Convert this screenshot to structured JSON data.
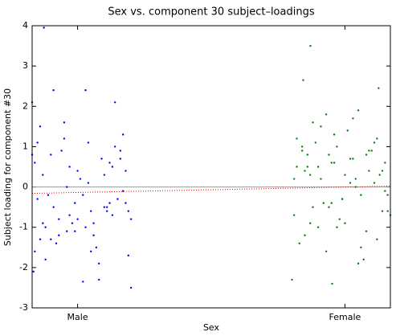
{
  "chart_data": {
    "type": "scatter",
    "title": "Sex vs. component 30 subject–loadings",
    "xlabel": "Sex",
    "ylabel": "Subject loading for component #30",
    "xlim": [
      0.83,
      2.17
    ],
    "xticks": [
      {
        "value": 1,
        "label": "Male"
      },
      {
        "value": 2,
        "label": "Female"
      }
    ],
    "ylim": [
      -3,
      4
    ],
    "yticks": [
      -3,
      -2,
      -1,
      0,
      1,
      2,
      3,
      4
    ],
    "hline": 0,
    "series": [
      {
        "color": "#0000ff",
        "x": [
          0.874,
          0.91,
          1.03,
          1.14,
          0.83,
          1.08,
          1.02,
          1.2,
          0.835,
          0.86,
          0.95,
          1.17,
          0.9,
          1.05,
          1.12,
          0.84,
          0.88,
          0.97,
          1.0,
          1.1,
          1.16,
          0.93,
          0.87,
          1.06,
          1.19,
          0.85,
          0.99,
          1.13,
          0.92,
          1.04,
          1.18,
          0.89,
          0.96,
          1.09,
          1.15,
          0.86,
          1.01,
          1.11,
          0.94,
          1.07,
          1.2,
          0.84,
          0.98,
          1.14,
          0.91,
          1.03,
          1.17,
          0.88,
          1.0,
          1.12,
          0.95,
          1.06,
          1.19,
          0.85,
          0.97,
          1.1,
          0.9,
          1.02,
          1.16,
          0.87,
          1.08,
          1.13,
          0.93,
          1.04,
          1.18,
          0.83,
          0.99,
          1.11,
          0.96,
          1.05
        ],
        "values": [
          3.95,
          2.4,
          2.4,
          2.1,
          2.1,
          -2.3,
          -2.35,
          -2.5,
          -2.1,
          1.5,
          1.2,
          1.3,
          0.8,
          -0.6,
          0.6,
          -1.6,
          -1.0,
          0.5,
          -0.8,
          -0.5,
          0.9,
          -1.2,
          0.3,
          -0.9,
          -1.7,
          1.1,
          -0.4,
          -0.7,
          -1.4,
          0.1,
          0.4,
          -0.2,
          -1.1,
          0.7,
          -0.3,
          -1.3,
          0.2,
          -0.6,
          0.9,
          -1.5,
          -0.8,
          0.6,
          -0.9,
          1.0,
          -0.5,
          -1.0,
          -0.1,
          -1.8,
          0.4,
          -0.4,
          1.6,
          -1.2,
          -0.6,
          -0.3,
          -0.7,
          0.3,
          -1.3,
          -0.2,
          0.7,
          -0.9,
          -1.9,
          0.5,
          -0.8,
          1.1,
          -0.4,
          0.8,
          -1.1,
          -0.5,
          0.0,
          -1.6
        ]
      },
      {
        "color": "#008000",
        "x": [
          1.871,
          1.844,
          2.126,
          1.802,
          1.952,
          1.82,
          1.85,
          1.88,
          1.91,
          1.94,
          1.97,
          2.0,
          2.03,
          2.06,
          2.09,
          2.12,
          2.15,
          2.17,
          1.81,
          1.84,
          1.87,
          1.9,
          1.93,
          1.96,
          1.99,
          2.02,
          2.05,
          2.08,
          2.11,
          2.14,
          2.16,
          1.83,
          1.86,
          1.89,
          1.92,
          1.95,
          1.98,
          2.01,
          2.04,
          2.07,
          2.1,
          2.13,
          2.16,
          1.82,
          1.85,
          1.88,
          1.91,
          1.94,
          1.97,
          2.0,
          2.03,
          2.06,
          2.09,
          2.12,
          2.15,
          1.81,
          1.84,
          1.87,
          1.9,
          1.93,
          1.96,
          1.99,
          2.02,
          2.05,
          2.08,
          2.11,
          2.14,
          1.86,
          1.95,
          2.04
        ],
        "values": [
          3.5,
          2.65,
          2.45,
          -2.3,
          -2.4,
          1.2,
          0.4,
          -0.5,
          1.5,
          0.8,
          -1.0,
          0.3,
          1.7,
          -0.2,
          0.9,
          -1.3,
          0.6,
          -0.7,
          0.2,
          1.0,
          -0.9,
          0.5,
          -1.6,
          1.3,
          -0.3,
          0.7,
          1.9,
          -1.1,
          0.1,
          0.4,
          -0.6,
          -1.4,
          0.8,
          1.1,
          -0.4,
          0.6,
          -0.8,
          1.4,
          0.0,
          -1.8,
          0.9,
          0.3,
          -0.2,
          0.5,
          -1.2,
          1.6,
          0.2,
          -0.5,
          1.0,
          -0.9,
          0.7,
          -1.5,
          0.4,
          1.2,
          -0.1,
          -0.7,
          0.9,
          0.3,
          -1.0,
          1.8,
          0.6,
          -0.3,
          0.1,
          -1.9,
          0.8,
          1.1,
          -0.6,
          0.5,
          -0.4,
          0.2
        ]
      }
    ],
    "fit": {
      "color": "#ff0000",
      "x": [
        0.83,
        2.17
      ],
      "values": [
        -0.16,
        0.02
      ]
    }
  }
}
